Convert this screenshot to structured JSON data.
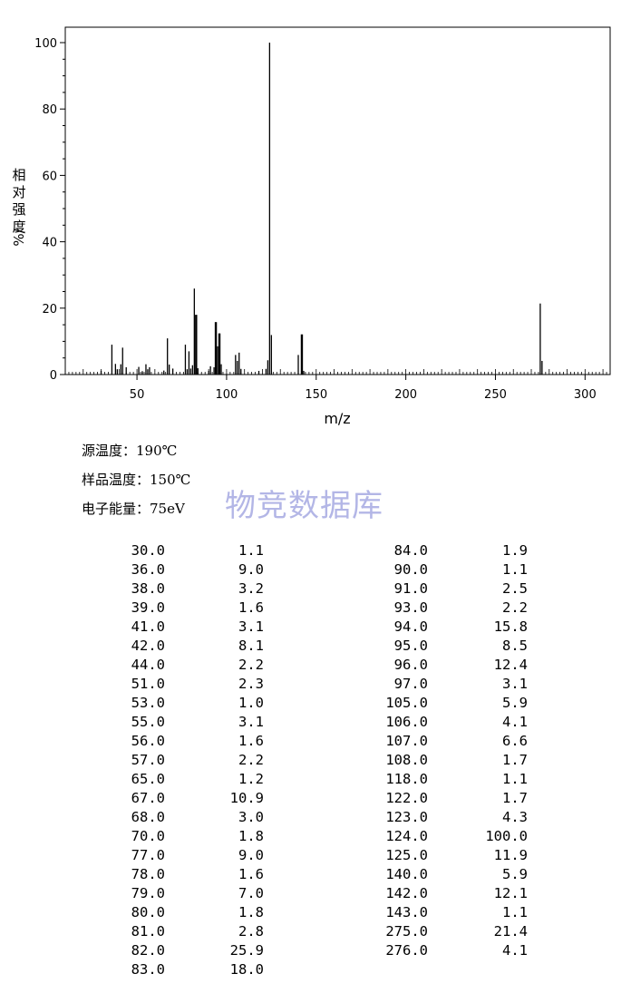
{
  "chart_data": {
    "type": "bar",
    "xlabel": "m/z",
    "ylabel": "相对强度%/",
    "xlim": [
      10,
      314
    ],
    "ylim": [
      0,
      105
    ],
    "xticks": [
      50,
      100,
      150,
      200,
      250,
      300
    ],
    "yticks": [
      0,
      20,
      40,
      60,
      80,
      100
    ],
    "grid": false,
    "legend": "none",
    "color": "#000000",
    "x": [
      30,
      36,
      38,
      39,
      41,
      42,
      44,
      51,
      53,
      55,
      56,
      57,
      65,
      67,
      68,
      70,
      77,
      78,
      79,
      80,
      81,
      82,
      83,
      84,
      90,
      91,
      93,
      94,
      95,
      96,
      97,
      105,
      106,
      107,
      108,
      118,
      122,
      123,
      124,
      125,
      140,
      142,
      143,
      275,
      276
    ],
    "values": [
      1.1,
      9.0,
      3.2,
      1.6,
      3.1,
      8.1,
      2.2,
      2.3,
      1.0,
      3.1,
      1.6,
      2.2,
      1.2,
      10.9,
      3.0,
      1.8,
      9.0,
      1.6,
      7.0,
      1.8,
      2.8,
      25.9,
      18.0,
      1.9,
      1.1,
      2.5,
      2.2,
      15.8,
      8.5,
      12.4,
      3.1,
      5.9,
      4.1,
      6.6,
      1.7,
      1.1,
      1.7,
      4.3,
      100.0,
      11.9,
      5.9,
      12.1,
      1.1,
      21.4,
      4.1
    ]
  },
  "conditions": [
    "源温度：190℃",
    "样品温度：150℃",
    "电子能量：75eV"
  ],
  "watermark": "物竞数据库",
  "peak_table": {
    "left": [
      [
        "30.0",
        "1.1"
      ],
      [
        "36.0",
        "9.0"
      ],
      [
        "38.0",
        "3.2"
      ],
      [
        "39.0",
        "1.6"
      ],
      [
        "41.0",
        "3.1"
      ],
      [
        "42.0",
        "8.1"
      ],
      [
        "44.0",
        "2.2"
      ],
      [
        "51.0",
        "2.3"
      ],
      [
        "53.0",
        "1.0"
      ],
      [
        "55.0",
        "3.1"
      ],
      [
        "56.0",
        "1.6"
      ],
      [
        "57.0",
        "2.2"
      ],
      [
        "65.0",
        "1.2"
      ],
      [
        "67.0",
        "10.9"
      ],
      [
        "68.0",
        "3.0"
      ],
      [
        "70.0",
        "1.8"
      ],
      [
        "77.0",
        "9.0"
      ],
      [
        "78.0",
        "1.6"
      ],
      [
        "79.0",
        "7.0"
      ],
      [
        "80.0",
        "1.8"
      ],
      [
        "81.0",
        "2.8"
      ],
      [
        "82.0",
        "25.9"
      ],
      [
        "83.0",
        "18.0"
      ]
    ],
    "right": [
      [
        "84.0",
        "1.9"
      ],
      [
        "90.0",
        "1.1"
      ],
      [
        "91.0",
        "2.5"
      ],
      [
        "93.0",
        "2.2"
      ],
      [
        "94.0",
        "15.8"
      ],
      [
        "95.0",
        "8.5"
      ],
      [
        "96.0",
        "12.4"
      ],
      [
        "97.0",
        "3.1"
      ],
      [
        "105.0",
        "5.9"
      ],
      [
        "106.0",
        "4.1"
      ],
      [
        "107.0",
        "6.6"
      ],
      [
        "108.0",
        "1.7"
      ],
      [
        "118.0",
        "1.1"
      ],
      [
        "122.0",
        "1.7"
      ],
      [
        "123.0",
        "4.3"
      ],
      [
        "124.0",
        "100.0"
      ],
      [
        "125.0",
        "11.9"
      ],
      [
        "140.0",
        "5.9"
      ],
      [
        "142.0",
        "12.1"
      ],
      [
        "143.0",
        "1.1"
      ],
      [
        "275.0",
        "21.4"
      ],
      [
        "276.0",
        "4.1"
      ]
    ]
  }
}
